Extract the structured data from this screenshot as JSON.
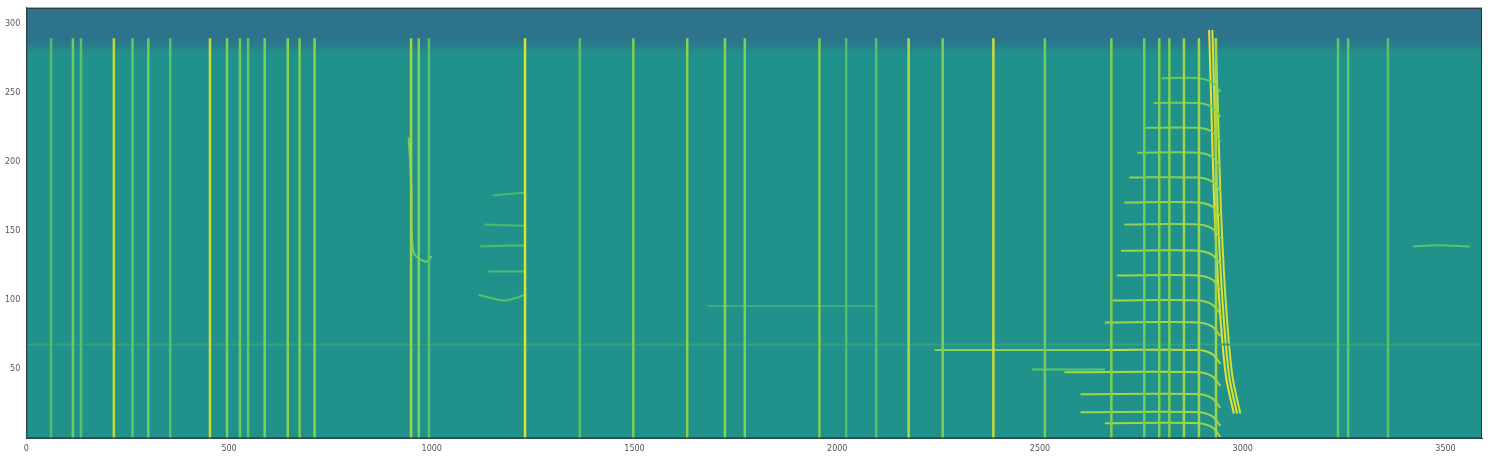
{
  "chart_data": {
    "type": "spectrogram",
    "xlim": [
      0,
      3590
    ],
    "xticks": [
      0,
      500,
      1000,
      1500,
      2000,
      2500,
      3000,
      3500
    ],
    "ylim": [
      0,
      312
    ],
    "yticks": [
      50,
      100,
      150,
      200,
      250,
      300
    ],
    "grid": false,
    "level_range": [
      0,
      1
    ],
    "background_level": 0.5,
    "top_band": {
      "y_from": 288,
      "level": 0.38
    },
    "click_band": [
      0,
      290
    ],
    "clicks": [
      {
        "x": 61,
        "level": 0.7
      },
      {
        "x": 115,
        "level": 0.78
      },
      {
        "x": 135,
        "level": 0.72
      },
      {
        "x": 216,
        "level": 0.9
      },
      {
        "x": 262,
        "level": 0.75
      },
      {
        "x": 301,
        "level": 0.78
      },
      {
        "x": 355,
        "level": 0.72
      },
      {
        "x": 453,
        "level": 0.92
      },
      {
        "x": 495,
        "level": 0.8
      },
      {
        "x": 527,
        "level": 0.78
      },
      {
        "x": 547,
        "level": 0.75
      },
      {
        "x": 588,
        "level": 0.8
      },
      {
        "x": 645,
        "level": 0.82
      },
      {
        "x": 674,
        "level": 0.8
      },
      {
        "x": 711,
        "level": 0.82
      },
      {
        "x": 949,
        "level": 0.85
      },
      {
        "x": 968,
        "level": 0.8
      },
      {
        "x": 993,
        "level": 0.72
      },
      {
        "x": 1230,
        "level": 0.95
      },
      {
        "x": 1365,
        "level": 0.72
      },
      {
        "x": 1497,
        "level": 0.8
      },
      {
        "x": 1630,
        "level": 0.82
      },
      {
        "x": 1723,
        "level": 0.82
      },
      {
        "x": 1772,
        "level": 0.8
      },
      {
        "x": 1956,
        "level": 0.8
      },
      {
        "x": 2022,
        "level": 0.7
      },
      {
        "x": 2096,
        "level": 0.72
      },
      {
        "x": 2176,
        "level": 0.88
      },
      {
        "x": 2260,
        "level": 0.8
      },
      {
        "x": 2385,
        "level": 0.92
      },
      {
        "x": 2512,
        "level": 0.78
      },
      {
        "x": 2676,
        "level": 0.8
      },
      {
        "x": 2757,
        "level": 0.78
      },
      {
        "x": 2794,
        "level": 0.8
      },
      {
        "x": 2819,
        "level": 0.8
      },
      {
        "x": 2855,
        "level": 0.85
      },
      {
        "x": 2892,
        "level": 0.85
      },
      {
        "x": 2934,
        "level": 0.85
      },
      {
        "x": 3235,
        "level": 0.75
      },
      {
        "x": 3260,
        "level": 0.75
      },
      {
        "x": 3358,
        "level": 0.72
      }
    ],
    "tracks": [
      {
        "level": 0.58,
        "points": [
          [
            0,
            68
          ],
          [
            3590,
            68
          ]
        ]
      },
      {
        "level": 0.78,
        "points": [
          [
            943,
            218
          ],
          [
            950,
            180
          ],
          [
            955,
            135
          ],
          [
            985,
            128
          ],
          [
            1000,
            132
          ]
        ]
      },
      {
        "level": 0.72,
        "points": [
          [
            1115,
            104
          ],
          [
            1180,
            100
          ],
          [
            1230,
            104
          ]
        ]
      },
      {
        "level": 0.7,
        "points": [
          [
            1140,
            121
          ],
          [
            1230,
            121
          ]
        ]
      },
      {
        "level": 0.7,
        "points": [
          [
            1120,
            139
          ],
          [
            1230,
            140
          ]
        ]
      },
      {
        "level": 0.68,
        "points": [
          [
            1130,
            155
          ],
          [
            1230,
            154
          ]
        ]
      },
      {
        "level": 0.68,
        "points": [
          [
            1150,
            176
          ],
          [
            1230,
            178
          ]
        ]
      },
      {
        "level": 0.62,
        "points": [
          [
            1680,
            96
          ],
          [
            2100,
            96
          ]
        ]
      },
      {
        "level": 0.72,
        "points": [
          [
            3420,
            139
          ],
          [
            3480,
            140
          ],
          [
            3560,
            139
          ]
        ]
      },
      {
        "level": 0.82,
        "points": [
          [
            2240,
            64
          ],
          [
            2660,
            64
          ]
        ]
      },
      {
        "level": 0.75,
        "points": [
          [
            2480,
            50
          ],
          [
            2660,
            50
          ]
        ]
      },
      {
        "level": 0.85,
        "points": [
          [
            2660,
            11
          ],
          [
            2890,
            11
          ],
          [
            2925,
            8
          ],
          [
            2945,
            1
          ]
        ]
      },
      {
        "level": 0.85,
        "points": [
          [
            2600,
            19
          ],
          [
            2890,
            19
          ],
          [
            2925,
            16
          ],
          [
            2945,
            9
          ]
        ]
      },
      {
        "level": 0.85,
        "points": [
          [
            2600,
            32
          ],
          [
            2890,
            32
          ],
          [
            2925,
            29
          ],
          [
            2945,
            22
          ]
        ]
      },
      {
        "level": 0.87,
        "points": [
          [
            2560,
            48
          ],
          [
            2890,
            48
          ],
          [
            2925,
            45
          ],
          [
            2945,
            38
          ]
        ]
      },
      {
        "level": 0.9,
        "points": [
          [
            2660,
            64
          ],
          [
            2890,
            64
          ],
          [
            2925,
            61
          ],
          [
            2945,
            54
          ]
        ]
      },
      {
        "level": 0.85,
        "points": [
          [
            2660,
            84
          ],
          [
            2890,
            84
          ],
          [
            2925,
            81
          ],
          [
            2945,
            74
          ]
        ]
      },
      {
        "level": 0.85,
        "points": [
          [
            2680,
            100
          ],
          [
            2890,
            100
          ],
          [
            2925,
            97
          ],
          [
            2945,
            90
          ]
        ]
      },
      {
        "level": 0.85,
        "points": [
          [
            2690,
            118
          ],
          [
            2890,
            118
          ],
          [
            2925,
            115
          ],
          [
            2945,
            108
          ]
        ]
      },
      {
        "level": 0.85,
        "points": [
          [
            2700,
            136
          ],
          [
            2890,
            136
          ],
          [
            2925,
            133
          ],
          [
            2945,
            126
          ]
        ]
      },
      {
        "level": 0.83,
        "points": [
          [
            2708,
            155
          ],
          [
            2890,
            155
          ],
          [
            2925,
            152
          ],
          [
            2945,
            145
          ]
        ]
      },
      {
        "level": 0.83,
        "points": [
          [
            2708,
            171
          ],
          [
            2890,
            171
          ],
          [
            2925,
            168
          ],
          [
            2945,
            161
          ]
        ]
      },
      {
        "level": 0.82,
        "points": [
          [
            2720,
            189
          ],
          [
            2890,
            189
          ],
          [
            2925,
            186
          ],
          [
            2945,
            179
          ]
        ]
      },
      {
        "level": 0.8,
        "points": [
          [
            2740,
            207
          ],
          [
            2890,
            207
          ],
          [
            2925,
            204
          ],
          [
            2945,
            197
          ]
        ]
      },
      {
        "level": 0.8,
        "points": [
          [
            2760,
            225
          ],
          [
            2890,
            225
          ],
          [
            2925,
            222
          ],
          [
            2945,
            215
          ]
        ]
      },
      {
        "level": 0.78,
        "points": [
          [
            2780,
            243
          ],
          [
            2890,
            243
          ],
          [
            2925,
            240
          ],
          [
            2945,
            233
          ]
        ]
      },
      {
        "level": 0.76,
        "points": [
          [
            2800,
            261
          ],
          [
            2890,
            261
          ],
          [
            2925,
            258
          ],
          [
            2945,
            251
          ]
        ]
      },
      {
        "level": 0.97,
        "points": [
          [
            2978,
            18
          ],
          [
            2958,
            46
          ],
          [
            2941,
            104
          ],
          [
            2929,
            175
          ],
          [
            2922,
            246
          ],
          [
            2917,
            296
          ]
        ]
      },
      {
        "level": 0.95,
        "points": [
          [
            2986,
            18
          ],
          [
            2966,
            46
          ],
          [
            2949,
            104
          ],
          [
            2937,
            175
          ],
          [
            2930,
            246
          ],
          [
            2925,
            296
          ]
        ]
      },
      {
        "level": 0.93,
        "points": [
          [
            2994,
            18
          ],
          [
            2974,
            46
          ],
          [
            2957,
            104
          ],
          [
            2945,
            175
          ],
          [
            2938,
            246
          ],
          [
            2933,
            290
          ]
        ]
      }
    ]
  }
}
